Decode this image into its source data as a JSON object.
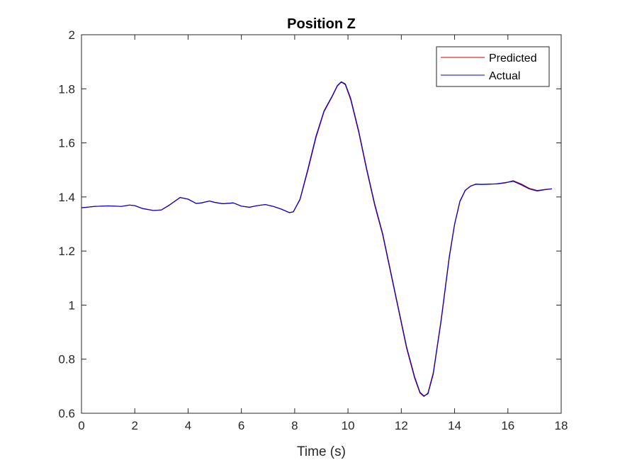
{
  "chart_data": {
    "type": "line",
    "title": "Position Z",
    "xlabel": "Time (s)",
    "ylabel": "",
    "xlim": [
      0,
      18
    ],
    "ylim": [
      0.6,
      2
    ],
    "xticks": [
      0,
      2,
      4,
      6,
      8,
      10,
      12,
      14,
      16,
      18
    ],
    "yticks": [
      0.6,
      0.8,
      1,
      1.2,
      1.4,
      1.6,
      1.8,
      2
    ],
    "xtick_labels": [
      "0",
      "2",
      "4",
      "6",
      "8",
      "10",
      "12",
      "14",
      "16",
      "18"
    ],
    "ytick_labels": [
      "0.6",
      "0.8",
      "1",
      "1.2",
      "1.4",
      "1.6",
      "1.8",
      "2"
    ],
    "grid": false,
    "legend_position": "top-right",
    "series": [
      {
        "name": "Predicted",
        "color": "#cc0000",
        "points": [
          [
            0,
            1.36
          ],
          [
            0.5,
            1.365
          ],
          [
            1.0,
            1.367
          ],
          [
            1.5,
            1.365
          ],
          [
            1.8,
            1.37
          ],
          [
            2.0,
            1.368
          ],
          [
            2.3,
            1.357
          ],
          [
            2.7,
            1.35
          ],
          [
            3.0,
            1.352
          ],
          [
            3.3,
            1.37
          ],
          [
            3.7,
            1.398
          ],
          [
            4.0,
            1.392
          ],
          [
            4.3,
            1.376
          ],
          [
            4.5,
            1.378
          ],
          [
            4.8,
            1.385
          ],
          [
            5.0,
            1.38
          ],
          [
            5.3,
            1.375
          ],
          [
            5.7,
            1.378
          ],
          [
            6.0,
            1.366
          ],
          [
            6.3,
            1.362
          ],
          [
            6.6,
            1.368
          ],
          [
            6.9,
            1.372
          ],
          [
            7.2,
            1.365
          ],
          [
            7.5,
            1.355
          ],
          [
            7.8,
            1.342
          ],
          [
            7.95,
            1.345
          ],
          [
            8.2,
            1.39
          ],
          [
            8.5,
            1.5
          ],
          [
            8.8,
            1.62
          ],
          [
            9.1,
            1.715
          ],
          [
            9.4,
            1.77
          ],
          [
            9.6,
            1.81
          ],
          [
            9.75,
            1.825
          ],
          [
            9.9,
            1.815
          ],
          [
            10.1,
            1.76
          ],
          [
            10.4,
            1.64
          ],
          [
            10.7,
            1.5
          ],
          [
            11.0,
            1.37
          ],
          [
            11.3,
            1.26
          ],
          [
            11.6,
            1.12
          ],
          [
            11.9,
            0.98
          ],
          [
            12.2,
            0.84
          ],
          [
            12.5,
            0.73
          ],
          [
            12.7,
            0.675
          ],
          [
            12.85,
            0.662
          ],
          [
            13.0,
            0.675
          ],
          [
            13.2,
            0.75
          ],
          [
            13.5,
            0.95
          ],
          [
            13.8,
            1.18
          ],
          [
            14.0,
            1.3
          ],
          [
            14.2,
            1.385
          ],
          [
            14.4,
            1.425
          ],
          [
            14.6,
            1.44
          ],
          [
            14.8,
            1.448
          ],
          [
            15.0,
            1.447
          ],
          [
            15.3,
            1.448
          ],
          [
            15.6,
            1.448
          ],
          [
            15.9,
            1.452
          ],
          [
            16.2,
            1.46
          ],
          [
            16.5,
            1.448
          ],
          [
            16.8,
            1.432
          ],
          [
            17.1,
            1.424
          ],
          [
            17.4,
            1.428
          ],
          [
            17.65,
            1.43
          ]
        ]
      },
      {
        "name": "Actual",
        "color": "#0000cc",
        "points": [
          [
            0,
            1.36
          ],
          [
            0.5,
            1.365
          ],
          [
            1.0,
            1.367
          ],
          [
            1.5,
            1.365
          ],
          [
            1.8,
            1.37
          ],
          [
            2.0,
            1.368
          ],
          [
            2.3,
            1.357
          ],
          [
            2.7,
            1.35
          ],
          [
            3.0,
            1.352
          ],
          [
            3.3,
            1.37
          ],
          [
            3.7,
            1.398
          ],
          [
            4.0,
            1.392
          ],
          [
            4.3,
            1.376
          ],
          [
            4.5,
            1.378
          ],
          [
            4.8,
            1.385
          ],
          [
            5.0,
            1.38
          ],
          [
            5.3,
            1.375
          ],
          [
            5.7,
            1.378
          ],
          [
            6.0,
            1.366
          ],
          [
            6.3,
            1.362
          ],
          [
            6.6,
            1.368
          ],
          [
            6.9,
            1.372
          ],
          [
            7.2,
            1.365
          ],
          [
            7.5,
            1.355
          ],
          [
            7.8,
            1.342
          ],
          [
            7.95,
            1.345
          ],
          [
            8.2,
            1.392
          ],
          [
            8.5,
            1.505
          ],
          [
            8.8,
            1.625
          ],
          [
            9.1,
            1.718
          ],
          [
            9.4,
            1.772
          ],
          [
            9.6,
            1.812
          ],
          [
            9.75,
            1.826
          ],
          [
            9.9,
            1.818
          ],
          [
            10.1,
            1.765
          ],
          [
            10.4,
            1.645
          ],
          [
            10.7,
            1.505
          ],
          [
            11.0,
            1.375
          ],
          [
            11.3,
            1.265
          ],
          [
            11.6,
            1.125
          ],
          [
            11.9,
            0.985
          ],
          [
            12.2,
            0.845
          ],
          [
            12.5,
            0.735
          ],
          [
            12.7,
            0.678
          ],
          [
            12.85,
            0.664
          ],
          [
            13.0,
            0.672
          ],
          [
            13.2,
            0.745
          ],
          [
            13.5,
            0.945
          ],
          [
            13.8,
            1.175
          ],
          [
            14.0,
            1.298
          ],
          [
            14.2,
            1.383
          ],
          [
            14.4,
            1.424
          ],
          [
            14.6,
            1.44
          ],
          [
            14.8,
            1.447
          ],
          [
            15.0,
            1.446
          ],
          [
            15.3,
            1.447
          ],
          [
            15.6,
            1.449
          ],
          [
            15.9,
            1.453
          ],
          [
            16.2,
            1.458
          ],
          [
            16.5,
            1.445
          ],
          [
            16.8,
            1.43
          ],
          [
            17.1,
            1.422
          ],
          [
            17.4,
            1.427
          ],
          [
            17.65,
            1.43
          ]
        ]
      }
    ]
  }
}
